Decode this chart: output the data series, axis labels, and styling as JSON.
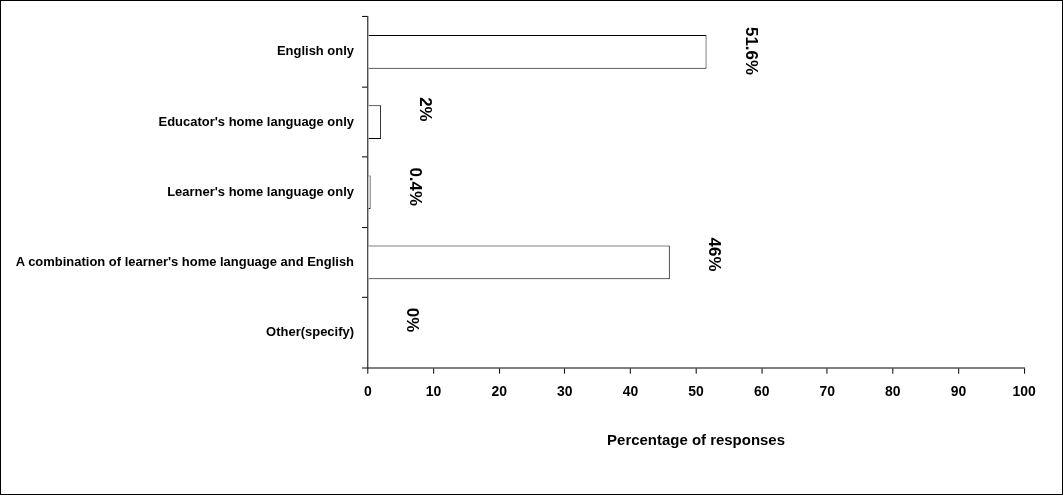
{
  "chart_data": {
    "type": "bar",
    "orientation": "horizontal",
    "xlabel": "Percentage of responses",
    "categories": [
      "English only",
      "Educator's home language only",
      "Learner's home language only",
      "A combination of learner's home language and English",
      "Other(specify)"
    ],
    "values": [
      51.6,
      2,
      0.4,
      46,
      0
    ],
    "value_labels": [
      "51.6%",
      "2%",
      "0.4%",
      "46%",
      "0%"
    ],
    "color": "#ffffff",
    "xlim": [
      0,
      100
    ],
    "xticks": [
      0,
      10,
      20,
      30,
      40,
      50,
      60,
      70,
      80,
      90,
      100
    ],
    "grid": false,
    "legend": false
  }
}
